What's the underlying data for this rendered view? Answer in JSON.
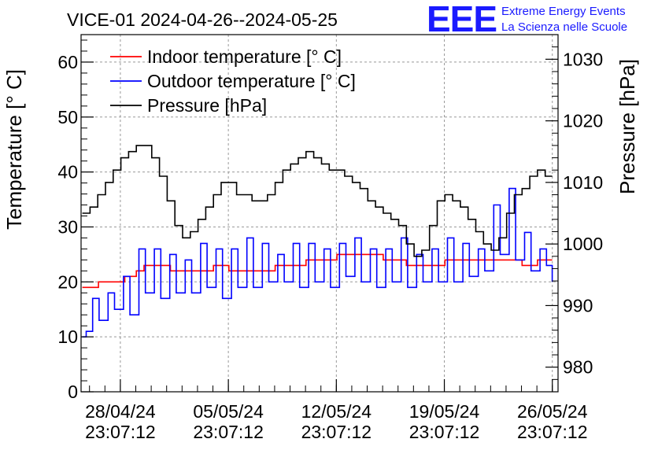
{
  "title": "VICE-01 2024-04-26--2024-05-25",
  "logo": {
    "mark": "EEE",
    "line1": "Extreme Energy Events",
    "line2": "La Scienza nelle Scuole",
    "color": "#1a1aff"
  },
  "chart_data": {
    "type": "line",
    "title": "VICE-01 2024-04-26--2024-05-25",
    "xlabel": "",
    "ylabel": "Temperature [° C]",
    "y2label": "Pressure [hPa]",
    "ylim": [
      0,
      65
    ],
    "y2lim": [
      976,
      1034
    ],
    "xlim": [
      "2024-04-26 10:00",
      "2024-05-27 08:00"
    ],
    "x_tick_labels": [
      {
        "date": "28/04/24",
        "time": "23:07:12"
      },
      {
        "date": "05/05/24",
        "time": "23:07:12"
      },
      {
        "date": "12/05/24",
        "time": "23:07:12"
      },
      {
        "date": "19/05/24",
        "time": "23:07:12"
      },
      {
        "date": "26/05/24",
        "time": "23:07:12"
      }
    ],
    "y_ticks": [
      0,
      10,
      20,
      30,
      40,
      50,
      60
    ],
    "y2_ticks": [
      980,
      990,
      1000,
      1010,
      1020,
      1030
    ],
    "grid": true,
    "legend_position": "top-left",
    "series": [
      {
        "name": "Indoor temperature [° C]",
        "axis": "left",
        "color": "#ff0000",
        "x": [
          "2024-04-26 12:00",
          "2024-04-27 12:00",
          "2024-04-27 13:00",
          "2024-04-29 04:00",
          "2024-04-29 06:00",
          "2024-04-30 00:00",
          "2024-04-30 12:00",
          "2024-05-02 04:00",
          "2024-05-02 05:00",
          "2024-05-03 00:00",
          "2024-05-04 00:00",
          "2024-05-05 00:00",
          "2024-05-06 00:00",
          "2024-05-06 12:00",
          "2024-05-08 00:00",
          "2024-05-09 00:00",
          "2024-05-10 00:00",
          "2024-05-11 00:00",
          "2024-05-12 00:00",
          "2024-05-13 00:00",
          "2024-05-14 00:00",
          "2024-05-15 00:00",
          "2024-05-16 00:00",
          "2024-05-17 00:00",
          "2024-05-17 12:00",
          "2024-05-18 00:00",
          "2024-05-19 00:00",
          "2024-05-20 00:00",
          "2024-05-21 00:00",
          "2024-05-22 00:00",
          "2024-05-23 00:00",
          "2024-05-24 00:00",
          "2024-05-25 00:00",
          "2024-05-26 00:00",
          "2024-05-26 23:00"
        ],
        "y": [
          19,
          19,
          20,
          20,
          21,
          22,
          23,
          23,
          22,
          22,
          22,
          23,
          22,
          22,
          22,
          23,
          23,
          24,
          24,
          25,
          25,
          25,
          24,
          24,
          23,
          23,
          23,
          24,
          24,
          24,
          24,
          24,
          23,
          24,
          24
        ]
      },
      {
        "name": "Outdoor temperature [° C]",
        "axis": "left",
        "color": "#0000ff",
        "x": [
          "2024-04-26 12:00",
          "2024-04-26 18:00",
          "2024-04-27 04:00",
          "2024-04-27 14:00",
          "2024-04-28 04:00",
          "2024-04-28 14:00",
          "2024-04-29 04:00",
          "2024-04-29 14:00",
          "2024-04-30 04:00",
          "2024-04-30 14:00",
          "2024-05-01 04:00",
          "2024-05-01 14:00",
          "2024-05-02 04:00",
          "2024-05-02 14:00",
          "2024-05-03 04:00",
          "2024-05-03 14:00",
          "2024-05-04 04:00",
          "2024-05-04 14:00",
          "2024-05-05 04:00",
          "2024-05-05 14:00",
          "2024-05-06 04:00",
          "2024-05-06 14:00",
          "2024-05-07 04:00",
          "2024-05-07 14:00",
          "2024-05-08 04:00",
          "2024-05-08 14:00",
          "2024-05-09 04:00",
          "2024-05-09 14:00",
          "2024-05-10 04:00",
          "2024-05-10 14:00",
          "2024-05-11 04:00",
          "2024-05-11 14:00",
          "2024-05-12 04:00",
          "2024-05-12 14:00",
          "2024-05-13 04:00",
          "2024-05-13 14:00",
          "2024-05-14 04:00",
          "2024-05-14 14:00",
          "2024-05-15 04:00",
          "2024-05-15 14:00",
          "2024-05-16 04:00",
          "2024-05-16 14:00",
          "2024-05-17 04:00",
          "2024-05-17 14:00",
          "2024-05-18 04:00",
          "2024-05-18 14:00",
          "2024-05-19 04:00",
          "2024-05-19 14:00",
          "2024-05-20 04:00",
          "2024-05-20 14:00",
          "2024-05-21 04:00",
          "2024-05-21 14:00",
          "2024-05-22 04:00",
          "2024-05-22 14:00",
          "2024-05-23 04:00",
          "2024-05-23 14:00",
          "2024-05-24 04:00",
          "2024-05-24 14:00",
          "2024-05-25 04:00",
          "2024-05-25 14:00",
          "2024-05-26 04:00",
          "2024-05-26 14:00",
          "2024-05-26 23:00"
        ],
        "y": [
          10,
          11,
          17,
          13,
          18,
          15,
          21,
          14,
          26,
          18,
          26,
          17,
          25,
          18,
          24,
          18,
          27,
          19,
          26,
          17,
          26,
          19,
          28,
          19,
          27,
          20,
          25,
          20,
          27,
          19,
          27,
          20,
          26,
          19,
          27,
          21,
          28,
          20,
          26,
          19,
          26,
          20,
          28,
          19,
          25,
          20,
          26,
          20,
          28,
          20,
          27,
          21,
          26,
          22,
          34,
          25,
          37,
          24,
          29,
          22,
          26,
          23,
          20
        ]
      },
      {
        "name": "Pressure [hPa]",
        "axis": "right",
        "color": "#000000",
        "x": [
          "2024-04-26 12:00",
          "2024-04-27 00:00",
          "2024-04-27 12:00",
          "2024-04-28 00:00",
          "2024-04-28 12:00",
          "2024-04-29 00:00",
          "2024-04-29 12:00",
          "2024-04-30 00:00",
          "2024-04-30 12:00",
          "2024-05-01 00:00",
          "2024-05-01 12:00",
          "2024-05-02 00:00",
          "2024-05-02 12:00",
          "2024-05-03 00:00",
          "2024-05-03 12:00",
          "2024-05-04 00:00",
          "2024-05-04 12:00",
          "2024-05-05 00:00",
          "2024-05-05 12:00",
          "2024-05-06 00:00",
          "2024-05-06 12:00",
          "2024-05-07 00:00",
          "2024-05-07 12:00",
          "2024-05-08 00:00",
          "2024-05-08 12:00",
          "2024-05-09 00:00",
          "2024-05-09 12:00",
          "2024-05-10 00:00",
          "2024-05-10 12:00",
          "2024-05-11 00:00",
          "2024-05-11 12:00",
          "2024-05-12 00:00",
          "2024-05-12 12:00",
          "2024-05-13 00:00",
          "2024-05-13 12:00",
          "2024-05-14 00:00",
          "2024-05-14 12:00",
          "2024-05-15 00:00",
          "2024-05-15 12:00",
          "2024-05-16 00:00",
          "2024-05-16 12:00",
          "2024-05-17 00:00",
          "2024-05-17 12:00",
          "2024-05-18 00:00",
          "2024-05-18 12:00",
          "2024-05-19 00:00",
          "2024-05-19 12:00",
          "2024-05-20 00:00",
          "2024-05-20 12:00",
          "2024-05-21 00:00",
          "2024-05-21 12:00",
          "2024-05-22 00:00",
          "2024-05-22 12:00",
          "2024-05-23 00:00",
          "2024-05-23 12:00",
          "2024-05-24 00:00",
          "2024-05-24 12:00",
          "2024-05-25 00:00",
          "2024-05-25 12:00",
          "2024-05-26 00:00",
          "2024-05-26 12:00",
          "2024-05-26 23:00"
        ],
        "y": [
          1005,
          1006,
          1008,
          1010,
          1012,
          1014,
          1015,
          1016,
          1016,
          1014,
          1011,
          1007,
          1003,
          1001,
          1002,
          1004,
          1006,
          1008,
          1010,
          1010,
          1008,
          1008,
          1007,
          1007,
          1008,
          1010,
          1012,
          1013,
          1014,
          1015,
          1014,
          1013,
          1012,
          1012,
          1011,
          1010,
          1009,
          1007,
          1006,
          1005,
          1004,
          1003,
          1000,
          998,
          999,
          1003,
          1007,
          1008,
          1007,
          1006,
          1004,
          1002,
          1000,
          999,
          1001,
          1005,
          1008,
          1009,
          1011,
          1012,
          1011,
          1011
        ]
      }
    ]
  }
}
